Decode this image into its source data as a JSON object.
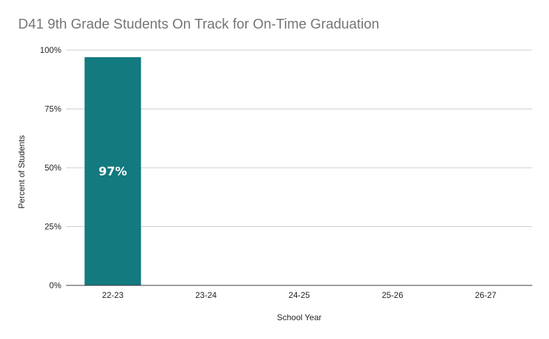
{
  "chart_data": {
    "type": "bar",
    "title": "D41 9th Grade Students On Track for On-Time Graduation",
    "xlabel": "School Year",
    "ylabel": "Percent of Students",
    "categories": [
      "22-23",
      "23-24",
      "24-25",
      "25-26",
      "26-27"
    ],
    "values": [
      97,
      null,
      null,
      null,
      null
    ],
    "data_labels": [
      "97%",
      "",
      "",
      "",
      ""
    ],
    "ylim": [
      0,
      100
    ],
    "yticks": [
      0,
      25,
      50,
      75,
      100
    ],
    "ytick_labels": [
      "0%",
      "25%",
      "50%",
      "75%",
      "100%"
    ],
    "grid": true,
    "legend": "none",
    "colors": {
      "bar": "#137a7f",
      "gridline": "#cccccc",
      "axis": "#333333",
      "title": "#757575"
    }
  }
}
